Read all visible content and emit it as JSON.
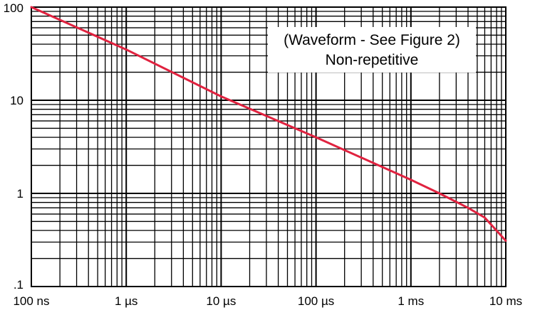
{
  "chart_data": {
    "type": "line",
    "title": "",
    "xlabel": "",
    "ylabel": "",
    "x_scale": "log",
    "y_scale": "log",
    "x_unit_seconds": true,
    "xlim": [
      1e-07,
      0.01
    ],
    "ylim": [
      0.1,
      100
    ],
    "grid": true,
    "x_ticks": [
      {
        "value": 1e-07,
        "label": "100 ns"
      },
      {
        "value": 1e-06,
        "label": "1 µs"
      },
      {
        "value": 1e-05,
        "label": "10 µs"
      },
      {
        "value": 0.0001,
        "label": "100 µs"
      },
      {
        "value": 0.001,
        "label": "1 ms"
      },
      {
        "value": 0.01,
        "label": "10 ms"
      }
    ],
    "y_ticks": [
      {
        "value": 100,
        "label": "100"
      },
      {
        "value": 10,
        "label": "10"
      },
      {
        "value": 1,
        "label": "1"
      },
      {
        "value": 0.1,
        "label": ".1"
      }
    ],
    "annotation": {
      "lines": [
        "(Waveform - See Figure 2)",
        "Non-repetitive"
      ],
      "placement": "top-right"
    },
    "series": [
      {
        "name": "curve",
        "color": "#e0223f",
        "x": [
          1e-07,
          1e-06,
          1e-05,
          0.0001,
          0.001,
          0.002,
          0.004,
          0.006,
          0.01
        ],
        "y": [
          100,
          35,
          11,
          4.0,
          1.4,
          1.0,
          0.7,
          0.55,
          0.31
        ]
      }
    ]
  }
}
